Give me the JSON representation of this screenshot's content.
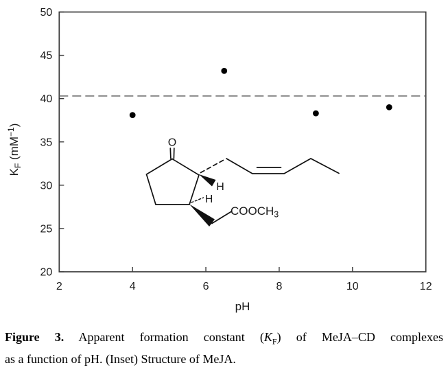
{
  "colors": {
    "background": "#ffffff",
    "axis": "#3a3a3a",
    "marker": "#000000",
    "reference_line": "#666666",
    "structure": "#111111"
  },
  "axes": {
    "x_label": "pH",
    "y_label_parts": {
      "k": "K",
      "k_sub": "F",
      "open": " (mM",
      "sup": "−1",
      "close": ")"
    }
  },
  "inset_labels": {
    "oxygen": "O",
    "h_top": "H",
    "h_bottom": "H",
    "ester_main": "COOCH",
    "ester_sub": "3"
  },
  "caption": {
    "label": "Figure 3.",
    "line1_before_k": " Apparent formation constant (",
    "k_italic": "K",
    "k_sub": "F",
    "line1_after_k": ") of MeJA–CD complexes",
    "line2": "as a function of pH. (Inset) Structure of MeJA."
  },
  "chart_data": {
    "type": "scatter",
    "title": "",
    "xlabel": "pH",
    "ylabel": "KF (mM-1)",
    "x": [
      4.0,
      6.5,
      9.0,
      11.0
    ],
    "y": [
      38.1,
      43.2,
      38.3,
      39.0
    ],
    "xlim": [
      2,
      12
    ],
    "ylim": [
      20,
      50
    ],
    "x_ticks": [
      2,
      4,
      6,
      8,
      10,
      12
    ],
    "y_ticks": [
      20,
      25,
      30,
      35,
      40,
      45,
      50
    ],
    "reference_line": {
      "y": 40.3,
      "style": "dashed"
    },
    "grid": false,
    "legend": null,
    "marker": {
      "shape": "circle",
      "color": "#000000",
      "radius_px": 4.4
    },
    "inset": "Chemical structure of MeJA (methyl jasmonate)"
  }
}
